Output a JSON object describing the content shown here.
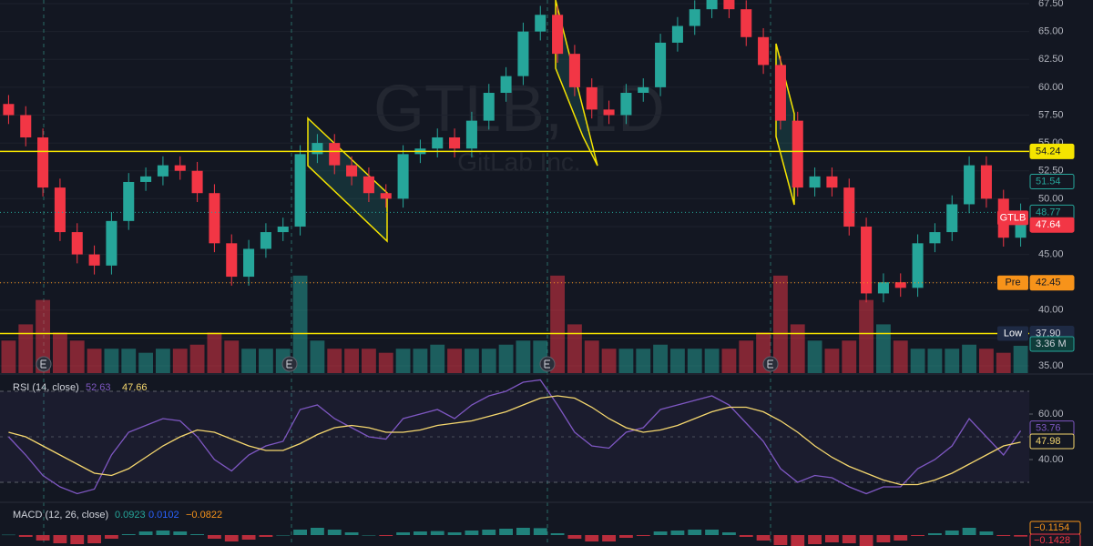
{
  "chart_data": [
    {
      "type": "candlestick",
      "watermark": [
        "GTLB, 1D",
        "GitLab Inc."
      ],
      "open": [
        58.5,
        57.5,
        55.5,
        51,
        47,
        45,
        44,
        48,
        51.5,
        52,
        53,
        52.5,
        50.5,
        46,
        43,
        45.5,
        47,
        47.5,
        54,
        55,
        53,
        52,
        50.5,
        50,
        54,
        54.5,
        55.5,
        54.5,
        57,
        59.5,
        61,
        65,
        66.5,
        63,
        60,
        58,
        57.5,
        59.5,
        60,
        64,
        65.5,
        67,
        68,
        67,
        64.5,
        62,
        57,
        51,
        52,
        51,
        47.5,
        41.5,
        42.5,
        42,
        46,
        47,
        49.5,
        53,
        50,
        46.5
      ],
      "high": [
        59.3,
        58.3,
        56.3,
        51.8,
        47.8,
        45.8,
        48.8,
        52.3,
        52.8,
        53.8,
        53.8,
        53.3,
        51.3,
        46.8,
        46.3,
        47.8,
        48.3,
        54.8,
        55.8,
        55.8,
        53.8,
        52.8,
        51.3,
        54.8,
        55.3,
        56.3,
        56.3,
        57.8,
        60.3,
        61.8,
        65.8,
        67.3,
        67.3,
        63.8,
        60.8,
        58.8,
        60.3,
        60.8,
        64.8,
        66.3,
        67.8,
        68.8,
        68.8,
        67.8,
        65.3,
        62.8,
        57.8,
        52.8,
        52.8,
        51.8,
        48.3,
        43.3,
        43.3,
        46.8,
        47.8,
        50.3,
        53.8,
        53.8,
        50.8,
        49.57
      ],
      "low": [
        56.7,
        54.7,
        50.2,
        46.2,
        44.2,
        43.2,
        43.2,
        47.2,
        50.7,
        51.2,
        51.7,
        49.7,
        45.2,
        42.2,
        42.2,
        44.7,
        46.2,
        46.7,
        53.2,
        52.2,
        51.2,
        49.7,
        49.2,
        49.2,
        53.2,
        53.7,
        53.7,
        53.7,
        56.2,
        58.7,
        60.2,
        64.2,
        62.2,
        59.2,
        57.2,
        56.7,
        56.7,
        58.7,
        59.2,
        63.2,
        64.7,
        66.2,
        66.2,
        63.7,
        61.2,
        56.2,
        50.2,
        50.2,
        50.2,
        46.7,
        40.7,
        40.7,
        41.2,
        41.2,
        45.2,
        46.2,
        48.7,
        49.2,
        45.7,
        45.7
      ],
      "close": [
        57.5,
        55.5,
        51,
        47,
        45,
        44,
        48,
        51.5,
        52,
        53,
        52.5,
        50.5,
        46,
        43,
        45.5,
        47,
        47.5,
        54,
        55,
        53,
        52,
        50.5,
        50,
        54,
        54.5,
        55.5,
        54.5,
        57,
        59.5,
        61,
        65,
        66.5,
        63,
        60,
        58,
        57.5,
        59.5,
        60,
        64,
        65.5,
        67,
        68,
        67,
        64.5,
        62,
        57,
        51,
        52,
        51,
        47.5,
        41.5,
        42.5,
        42,
        46,
        47,
        49.5,
        53,
        50,
        46.5,
        48.77
      ],
      "up_color": "#26a69a",
      "down_color": "#f23645",
      "ylim": [
        34.35,
        67.83
      ],
      "yticks": [
        {
          "value": 67.5,
          "label": "67.50"
        },
        {
          "value": 65,
          "label": "65.00"
        },
        {
          "value": 62.5,
          "label": "62.50"
        },
        {
          "value": 60,
          "label": "60.00"
        },
        {
          "value": 57.5,
          "label": "57.50"
        },
        {
          "value": 55,
          "label": "55.00"
        },
        {
          "value": 52.5,
          "label": "52.50"
        },
        {
          "value": 50,
          "label": "50.00"
        },
        {
          "value": 47.5,
          "label": "47.50"
        },
        {
          "value": 45,
          "label": "45.00"
        },
        {
          "value": 42.5,
          "label": "42.50"
        },
        {
          "value": 40,
          "label": "40.00"
        },
        {
          "value": 37.5,
          "label": "37.50"
        },
        {
          "value": 35,
          "label": "35.00"
        }
      ],
      "grid": true,
      "price_tags": [
        {
          "value": 54.24,
          "label": "54.24",
          "color": "#f5e400",
          "text_color": "#131722",
          "line": "solid"
        },
        {
          "value": 51.54,
          "label": "51.54",
          "color": "#131722",
          "text_color": "#26a69a"
        },
        {
          "value": 48.77,
          "label": "48.77",
          "color": "#131722",
          "text_color": "#26a69a",
          "line": "dotted",
          "name": "GTLB",
          "name_color": "#f23645"
        },
        {
          "value": 47.64,
          "label": "47.64",
          "color": "#f23645",
          "text_color": "#ffffff"
        },
        {
          "value": 42.45,
          "label": "42.45",
          "color": "#f7931a",
          "text_color": "#131722",
          "line": "dotted",
          "name": "Pre",
          "name_color": "#f7931a"
        },
        {
          "value": 37.9,
          "label": "37.90",
          "color": "#1e2a44",
          "text_color": "#d1d4dc",
          "line": "solid",
          "name": "Low",
          "name_color": "#1e2a44"
        }
      ],
      "volume": {
        "values": [
          4,
          6,
          9,
          5,
          4,
          3,
          3,
          3,
          2.5,
          3,
          3,
          3.5,
          5,
          4,
          3,
          3,
          3,
          12,
          4,
          3,
          3,
          3,
          2.5,
          3,
          3,
          3.5,
          3,
          3,
          3,
          3.5,
          4,
          4,
          12,
          6,
          4,
          3,
          3,
          3,
          3.5,
          3,
          3,
          3,
          3,
          4,
          5,
          12,
          6,
          4,
          3,
          4,
          9,
          6,
          4,
          3,
          3,
          3,
          3.5,
          3,
          2.5,
          3.36
        ],
        "ylim": [
          0,
          14
        ],
        "tag": {
          "value": 3.36,
          "label": "3.36 M"
        }
      }
    },
    {
      "type": "line",
      "title": "RSI (14, close)",
      "legend_values": [
        {
          "value": 52.63,
          "label": "52.63"
        },
        {
          "value": 47.66,
          "label": "47.66"
        }
      ],
      "series": [
        {
          "color": "#7e57c2",
          "values": [
            50,
            42,
            33,
            28,
            25,
            27,
            42,
            52,
            55,
            58,
            57,
            50,
            40,
            35,
            42,
            46,
            48,
            62,
            64,
            58,
            54,
            50,
            49,
            58,
            60,
            62,
            58,
            64,
            68,
            70,
            74,
            75,
            64,
            52,
            46,
            45,
            52,
            54,
            62,
            64,
            66,
            68,
            64,
            56,
            48,
            36,
            30,
            33,
            32,
            28,
            25,
            28,
            28,
            36,
            40,
            46,
            58,
            50,
            42,
            52.63
          ]
        },
        {
          "color": "#f5d76e",
          "values": [
            52,
            50,
            46,
            42,
            38,
            34,
            33,
            36,
            41,
            46,
            50,
            53,
            52,
            49,
            46,
            44,
            44,
            47,
            51,
            54,
            55,
            54,
            52,
            52,
            53,
            55,
            56,
            57,
            59,
            61,
            64,
            67,
            68,
            67,
            63,
            58,
            54,
            52,
            53,
            55,
            58,
            61,
            63,
            63,
            61,
            57,
            52,
            46,
            41,
            37,
            34,
            31,
            29,
            29,
            31,
            34,
            38,
            42,
            46,
            47.66
          ]
        }
      ],
      "ylim": [
        22,
        76
      ],
      "yticks": [
        {
          "value": 60,
          "label": "60.00"
        },
        {
          "value": 40,
          "label": "40.00"
        }
      ],
      "tags": [
        {
          "value": 53.76,
          "label": "53.76",
          "color": "#7e57c2"
        },
        {
          "value": 47.98,
          "label": "47.98",
          "color": "#f5d76e"
        }
      ]
    },
    {
      "type": "bar",
      "title": "MACD (12, 26, close)",
      "legend_values": [
        {
          "value": 0.0923,
          "label": "0.0923",
          "color": "#26a69a"
        },
        {
          "value": 0.0102,
          "label": "0.0102",
          "color": "#2962ff"
        },
        {
          "value": -0.0822,
          "label": "−0.0822",
          "color": "#f7931a"
        }
      ],
      "values": [
        0.02,
        -0.1,
        -0.3,
        -0.45,
        -0.5,
        -0.45,
        -0.2,
        0.05,
        0.2,
        0.25,
        0.2,
        0.05,
        -0.2,
        -0.35,
        -0.25,
        -0.1,
        0,
        0.3,
        0.4,
        0.3,
        0.15,
        0,
        -0.05,
        0.15,
        0.2,
        0.22,
        0.15,
        0.25,
        0.3,
        0.35,
        0.4,
        0.38,
        0.1,
        -0.2,
        -0.35,
        -0.35,
        -0.15,
        -0.05,
        0.2,
        0.25,
        0.3,
        0.3,
        0.15,
        -0.1,
        -0.3,
        -0.55,
        -0.7,
        -0.5,
        -0.4,
        -0.45,
        -0.6,
        -0.4,
        -0.3,
        -0.05,
        0.1,
        0.25,
        0.4,
        0.2,
        -0.05,
        -0.0822
      ],
      "pos_color": "#26a69a",
      "neg_color": "#f23645",
      "ylim": [
        -0.6,
        1.65
      ],
      "tags": [
        {
          "value": -0.1154,
          "label": "−0.1154",
          "color": "#f7931a"
        },
        {
          "value": -0.1428,
          "label": "−0.1428",
          "color": "#f23645"
        }
      ]
    }
  ]
}
